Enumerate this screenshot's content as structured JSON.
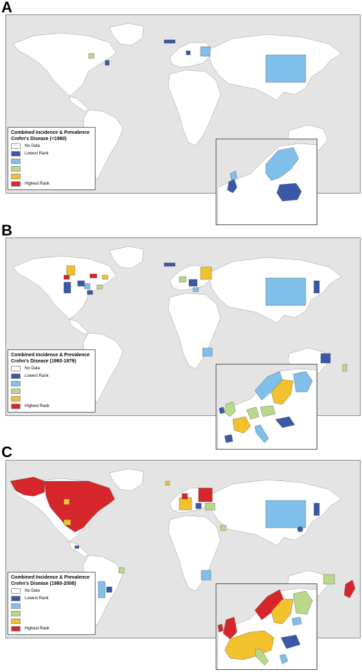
{
  "colors": {
    "no_data": "#ffffff",
    "rank1": "#3b58a8",
    "rank2": "#7fbfea",
    "rank3": "#b9d88a",
    "rank4": "#f2c22e",
    "rank5": "#d7262b",
    "ocean": "#e4e4e4",
    "land": "#ffffff"
  },
  "legend_common": {
    "heading": "Combined Incidence & Prevalence",
    "entries": [
      {
        "label": "No Data",
        "color_key": "no_data"
      },
      {
        "label": "Lowest Rank",
        "color_key": "rank1"
      },
      {
        "label": "",
        "color_key": "rank2"
      },
      {
        "label": "",
        "color_key": "rank3"
      },
      {
        "label": "",
        "color_key": "rank4"
      },
      {
        "label": "Highest Rank",
        "color_key": "rank5"
      }
    ]
  },
  "panels": [
    {
      "letter": "A",
      "subtitle": "Crohn's Disease (<1960)"
    },
    {
      "letter": "B",
      "subtitle": "Crohn's Disease (1960-1979)"
    },
    {
      "letter": "C",
      "subtitle": "Crohn's Disease (1980-2008)"
    }
  ]
}
